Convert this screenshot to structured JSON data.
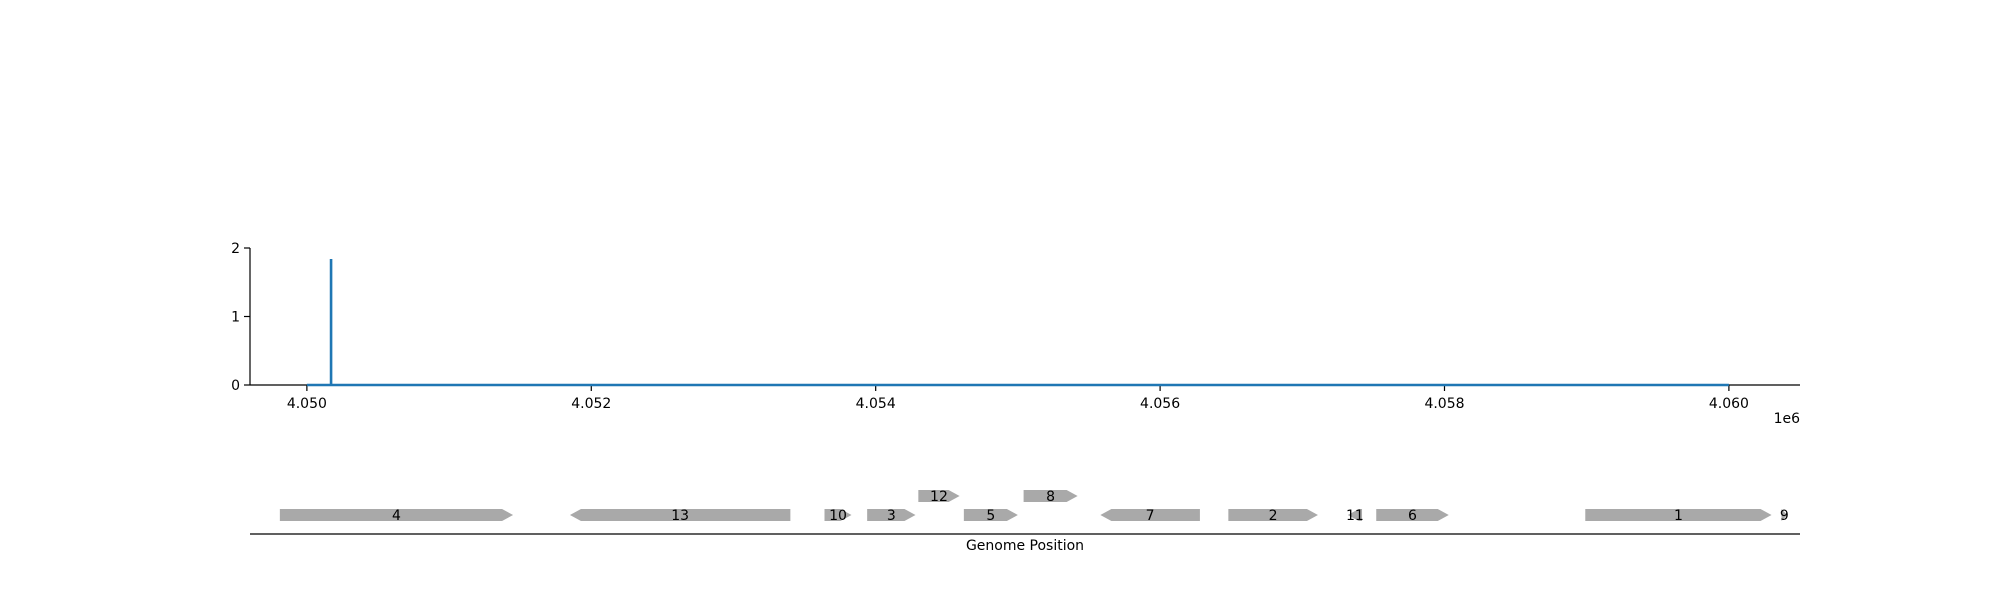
{
  "chart_data": [
    {
      "type": "line",
      "title": "",
      "xlabel": "",
      "ylabel": "",
      "x_offset_label": "1e6",
      "xlim": [
        4049600,
        4060500
      ],
      "ylim": [
        0,
        2
      ],
      "x_ticks": [
        4050000,
        4052000,
        4054000,
        4056000,
        4058000,
        4060000
      ],
      "x_tick_labels": [
        "4.050",
        "4.052",
        "4.054",
        "4.056",
        "4.058",
        "4.060"
      ],
      "y_ticks": [
        0,
        1,
        2
      ],
      "y_tick_labels": [
        "0",
        "1",
        "2"
      ],
      "color": "#1f77b4",
      "series": [
        {
          "x": [
            4050000,
            4050170,
            4050170,
            4050170,
            4050170,
            4060000
          ],
          "y": [
            0,
            0,
            1.84,
            1.84,
            0,
            0
          ]
        }
      ]
    },
    {
      "type": "gene-track",
      "xlabel": "Genome Position",
      "xlim": [
        4049600,
        4060500
      ],
      "color": "#a9a9a9",
      "genes": [
        {
          "label": "4",
          "start": 4049810,
          "end": 4051450,
          "strand": "+",
          "row": 0
        },
        {
          "label": "13",
          "start": 4051850,
          "end": 4053400,
          "strand": "-",
          "row": 0
        },
        {
          "label": "10",
          "start": 4053640,
          "end": 4053830,
          "strand": "+",
          "row": 0
        },
        {
          "label": "3",
          "start": 4053940,
          "end": 4054280,
          "strand": "+",
          "row": 0
        },
        {
          "label": "12",
          "start": 4054300,
          "end": 4054590,
          "strand": "+",
          "row": 1
        },
        {
          "label": "5",
          "start": 4054620,
          "end": 4055000,
          "strand": "+",
          "row": 0
        },
        {
          "label": "8",
          "start": 4055040,
          "end": 4055420,
          "strand": "+",
          "row": 1
        },
        {
          "label": "7",
          "start": 4055580,
          "end": 4056280,
          "strand": "-",
          "row": 0
        },
        {
          "label": "2",
          "start": 4056480,
          "end": 4057110,
          "strand": "+",
          "row": 0
        },
        {
          "label": "11",
          "start": 4057320,
          "end": 4057420,
          "strand": "-",
          "row": 0
        },
        {
          "label": "6",
          "start": 4057520,
          "end": 4058030,
          "strand": "+",
          "row": 0
        },
        {
          "label": "1",
          "start": 4058990,
          "end": 4060300,
          "strand": "+",
          "row": 0
        },
        {
          "label": "9",
          "start": 4060370,
          "end": 4060410,
          "strand": "+",
          "row": 0
        }
      ]
    }
  ]
}
